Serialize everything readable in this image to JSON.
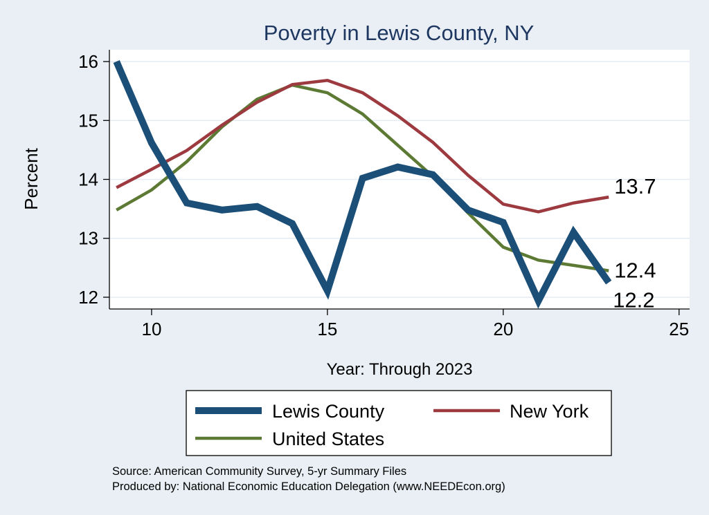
{
  "chart_data": {
    "type": "line",
    "title": "Poverty in Lewis County, NY",
    "xlabel": "Year: Through 2023",
    "ylabel": "Percent",
    "xlim": [
      8.8,
      25.3
    ],
    "ylim": [
      11.8,
      16.2
    ],
    "xticks": [
      "10",
      "15",
      "20",
      "25"
    ],
    "yticks": [
      "12",
      "13",
      "14",
      "15",
      "16"
    ],
    "x": [
      9,
      10,
      11,
      12,
      13,
      14,
      15,
      16,
      17,
      18,
      19,
      20,
      21,
      22,
      23
    ],
    "series": [
      {
        "name": "Lewis County",
        "color": "#1c4f78",
        "values": [
          16.0,
          14.62,
          13.6,
          13.48,
          13.54,
          13.25,
          12.11,
          14.02,
          14.21,
          14.08,
          13.48,
          13.27,
          11.94,
          13.1,
          12.25
        ],
        "end_label": "12.2"
      },
      {
        "name": "New York",
        "color": "#9c3a3f",
        "values": [
          13.86,
          14.17,
          14.49,
          14.92,
          15.31,
          15.61,
          15.68,
          15.47,
          15.08,
          14.63,
          14.07,
          13.58,
          13.45,
          13.6,
          13.7
        ],
        "end_label": "13.7"
      },
      {
        "name": "United States",
        "color": "#5d7a34",
        "values": [
          13.48,
          13.82,
          14.3,
          14.89,
          15.36,
          15.6,
          15.47,
          15.11,
          14.58,
          14.05,
          13.43,
          12.85,
          12.63,
          12.54,
          12.45
        ],
        "end_label": "12.4"
      }
    ],
    "legend": {
      "position": "bottom",
      "entries": [
        "Lewis County",
        "New York",
        "United States"
      ]
    },
    "notes": [
      "Source: American Community Survey, 5-yr Summary Files",
      "Produced by: National Economic Education Delegation (www.NEEDEcon.org)"
    ]
  },
  "colors": {
    "background": "#e9eff4",
    "plot_area": "#ffffff",
    "title": "#1d3760",
    "grid": "#e3ecf2"
  }
}
